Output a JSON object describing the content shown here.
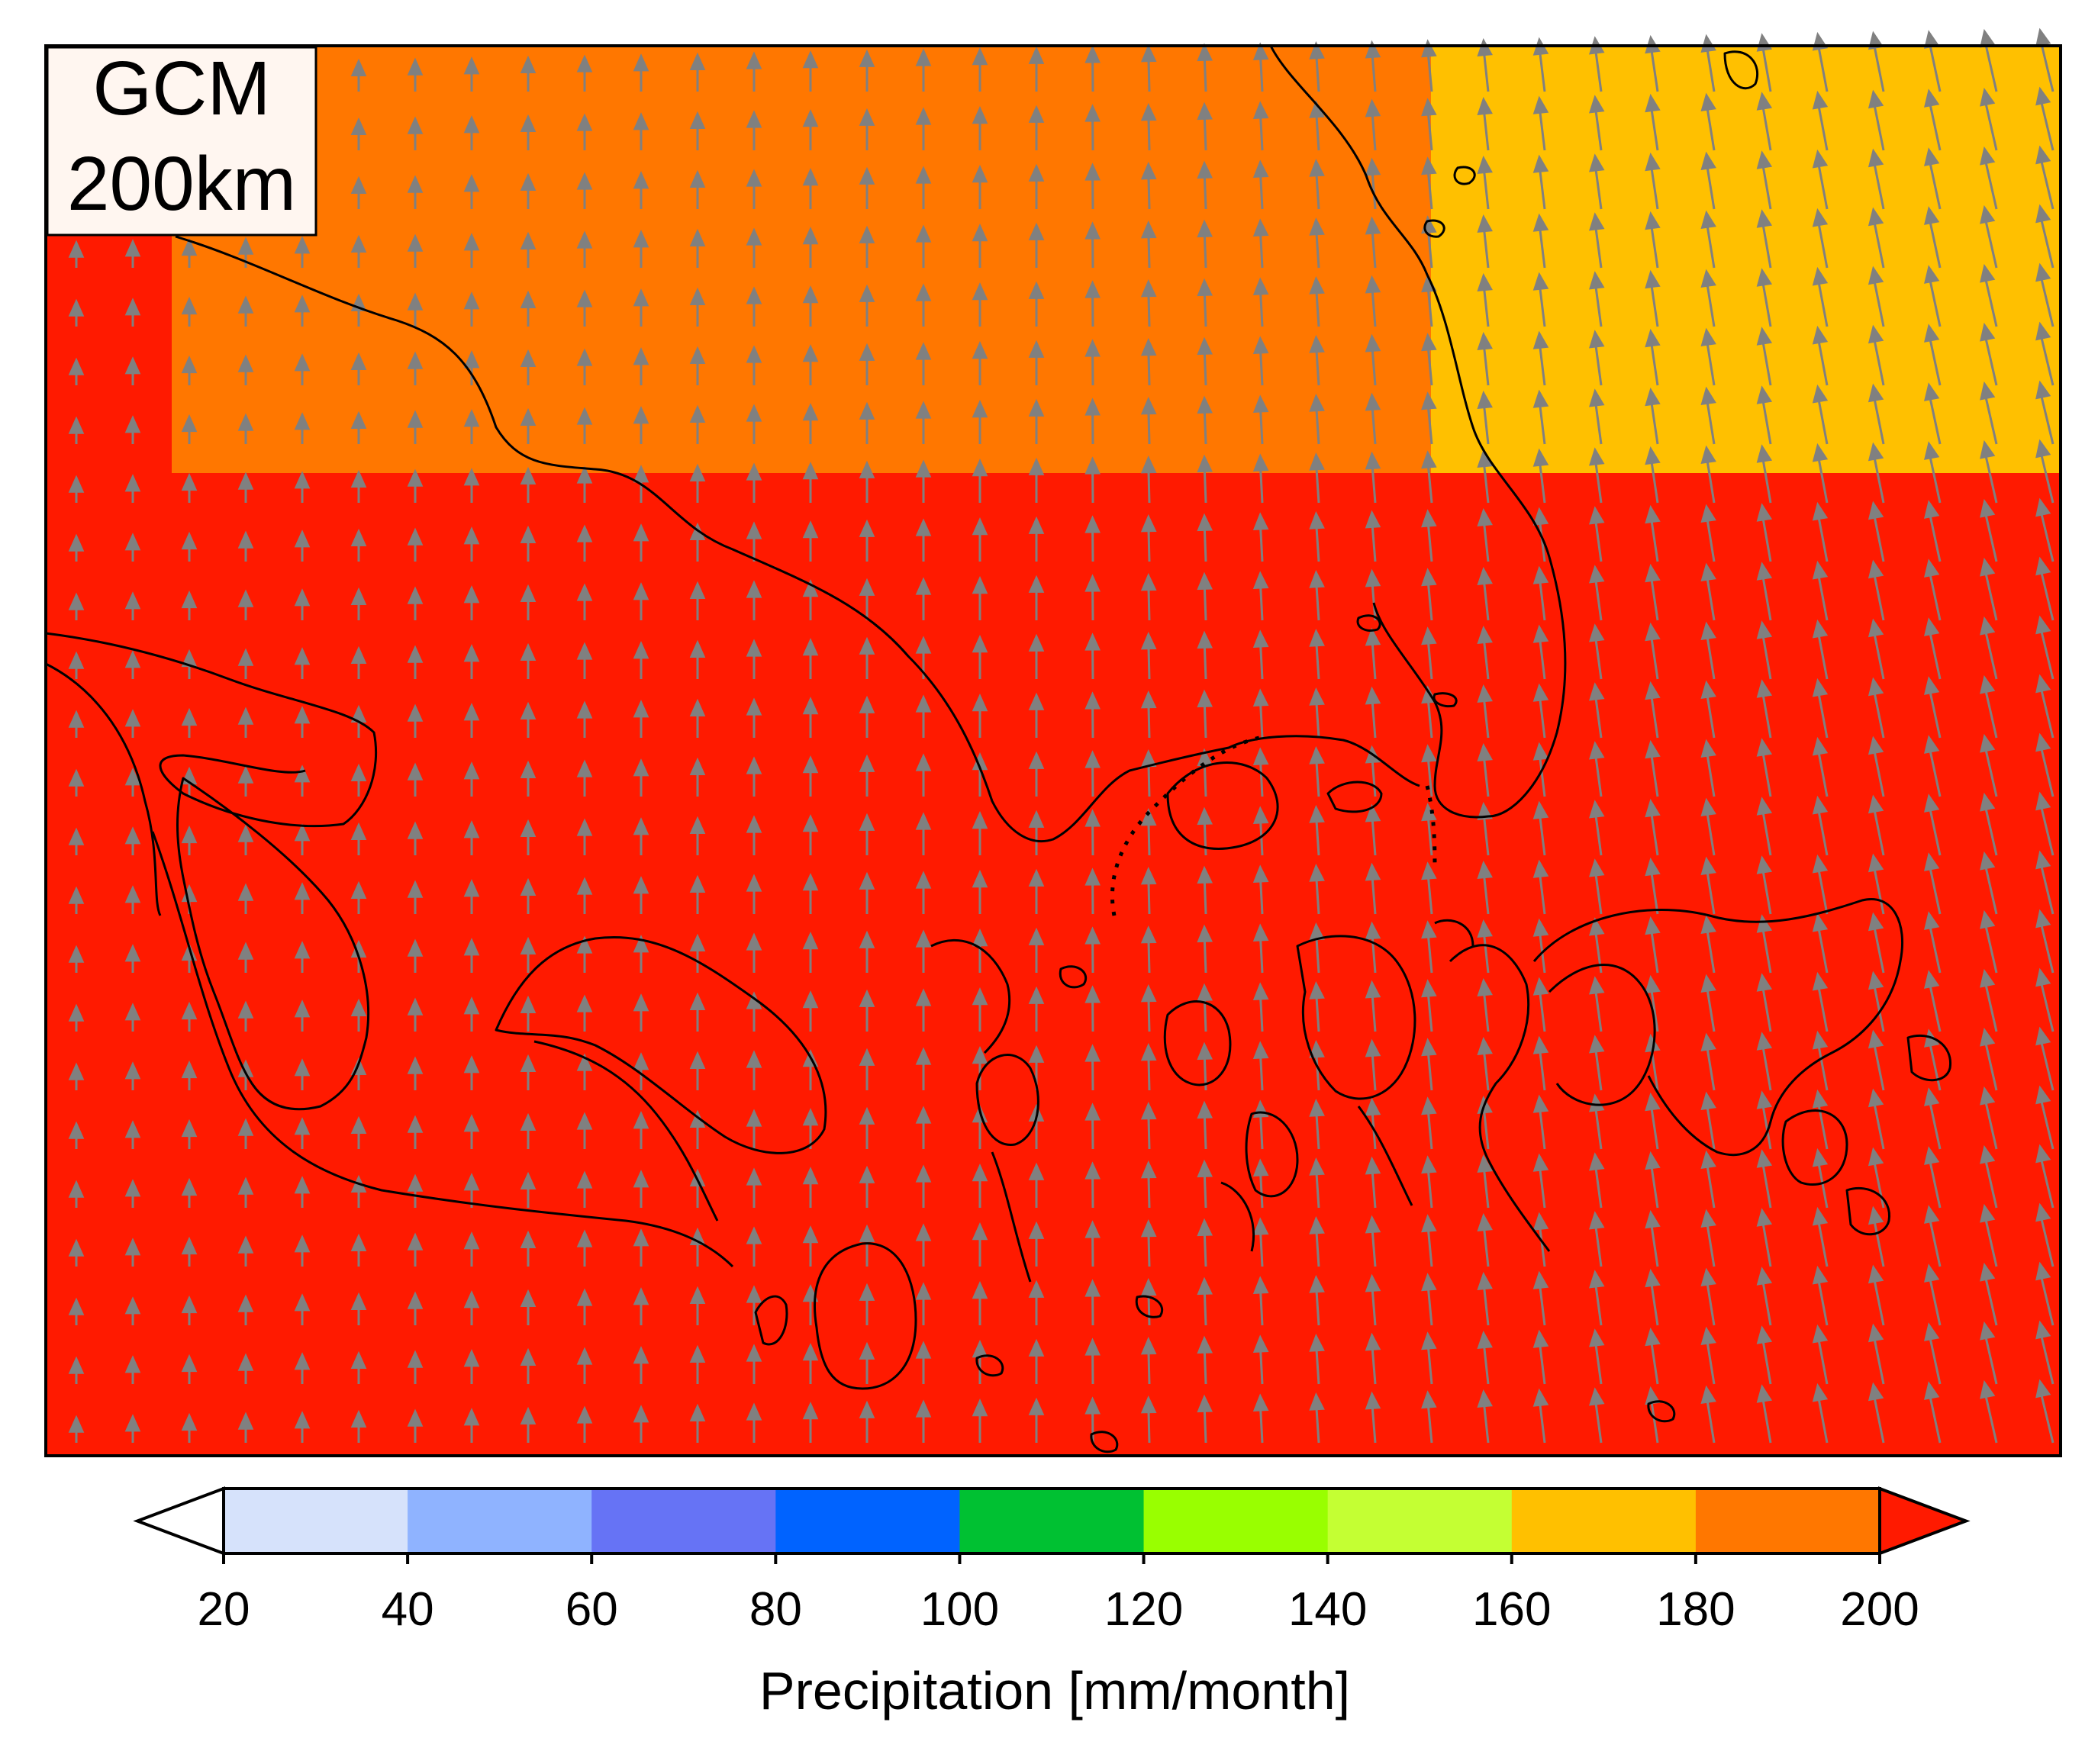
{
  "panel_label": {
    "line1": "GCM",
    "line2": "200km"
  },
  "colorbar": {
    "label": "Precipitation [mm/month]",
    "ticks": [
      "20",
      "40",
      "60",
      "80",
      "100",
      "120",
      "140",
      "160",
      "180",
      "200"
    ],
    "under_color": "#ffffff",
    "bin_colors": [
      "#d6e2fb",
      "#8fb3ff",
      "#6673f5",
      "#0063ff",
      "#00c132",
      "#99ff00",
      "#c4ff33",
      "#ffc000",
      "#ff7700"
    ],
    "over_color": "#ff1a00"
  },
  "chart_data": {
    "type": "heatmap",
    "title": "GCM 200km",
    "colorbar_label": "Precipitation [mm/month]",
    "units": "mm/month",
    "levels": [
      20,
      40,
      60,
      80,
      100,
      120,
      140,
      160,
      180,
      200
    ],
    "cells": [
      {
        "region": "left-upper",
        "bin": ">200",
        "color": "#ff1a00"
      },
      {
        "region": "center-upper",
        "bin": "180-200",
        "color": "#ff7700"
      },
      {
        "region": "right-upper",
        "bin": "160-180",
        "color": "#ffc000"
      },
      {
        "region": "lower",
        "bin": ">200",
        "color": "#ff1a00"
      }
    ],
    "wind_vectors": {
      "color": "#808080",
      "direction": "northward, slightly north-northwest on the right side"
    }
  }
}
